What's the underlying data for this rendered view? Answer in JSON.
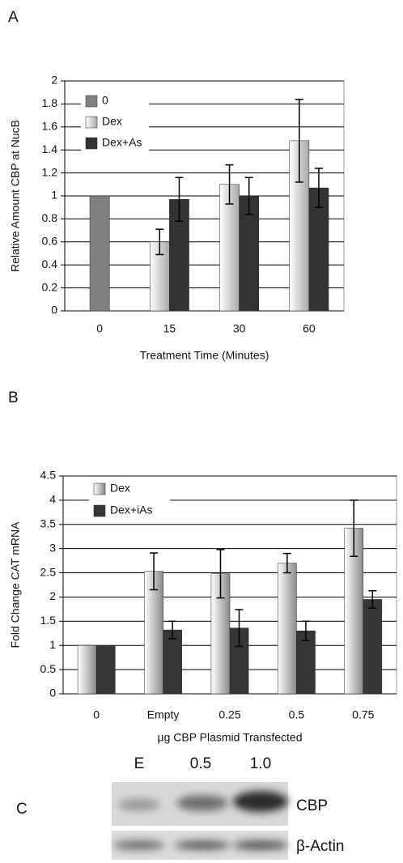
{
  "panel_labels": [
    "A",
    "B",
    "C"
  ],
  "chart_data": [
    {
      "type": "bar",
      "categories": [
        "0",
        "15",
        "30",
        "60"
      ],
      "y_label": "Relative Amount CBP at NucB",
      "x_label": "Treatment Time (Minutes)",
      "ylim": [
        0,
        2
      ],
      "yticks": [
        0,
        0.2,
        0.4,
        0.6,
        0.8,
        1,
        1.2,
        1.4,
        1.6,
        1.8,
        2
      ],
      "grid": true,
      "legend": "upper left",
      "series": [
        {
          "name": "0",
          "color": "#808080",
          "gradient": false,
          "values": [
            1,
            null,
            null,
            null
          ],
          "errors": [
            null,
            null,
            null,
            null
          ]
        },
        {
          "name": "Dex",
          "color": "#a8a8a8",
          "gradient": true,
          "values": [
            null,
            0.6,
            1.1,
            1.48
          ],
          "errors": [
            null,
            0.11,
            0.17,
            0.36
          ]
        },
        {
          "name": "Dex+As",
          "color": "#333333",
          "gradient": false,
          "values": [
            null,
            0.97,
            1.0,
            1.07
          ],
          "errors": [
            null,
            0.19,
            0.16,
            0.17
          ]
        }
      ]
    },
    {
      "type": "bar",
      "categories": [
        "0",
        "Empty",
        "0.25",
        "0.5",
        "0.75"
      ],
      "y_label": "Fold Change CAT mRNA",
      "x_label": "µg CBP Plasmid Transfected",
      "ylim": [
        0,
        4.5
      ],
      "yticks": [
        0,
        0.5,
        1,
        1.5,
        2,
        2.5,
        3,
        3.5,
        4,
        4.5
      ],
      "grid": true,
      "legend": "upper left",
      "series": [
        {
          "name": "Dex",
          "color": "#8a8a8a",
          "gradient": true,
          "values": [
            1,
            2.53,
            2.48,
            2.7,
            3.42
          ],
          "errors": [
            null,
            0.38,
            0.5,
            0.2,
            0.58
          ]
        },
        {
          "name": "Dex+iAs",
          "color": "#363636",
          "gradient": false,
          "values": [
            1,
            1.32,
            1.36,
            1.3,
            1.95
          ],
          "errors": [
            null,
            0.18,
            0.38,
            0.2,
            0.18
          ]
        }
      ]
    }
  ],
  "blot": {
    "lanes": [
      "E",
      "0.5",
      "1.0"
    ],
    "rows": [
      "CBP",
      "β-Actin"
    ]
  }
}
